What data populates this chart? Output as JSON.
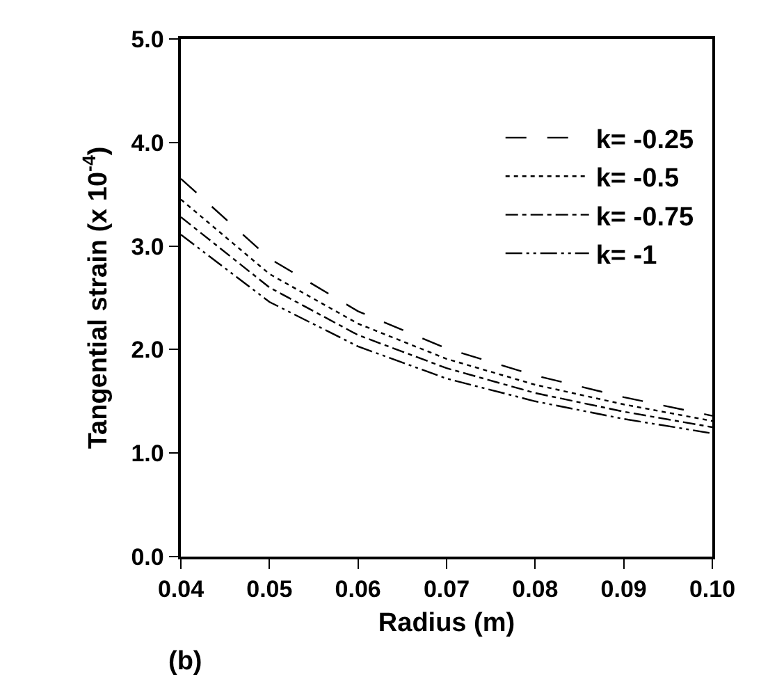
{
  "chart_data": {
    "type": "line",
    "xlabel": "Radius (m)",
    "ylabel": "Tangential strain (x 10$^{-4}$)",
    "annotations": [
      "(b)"
    ],
    "x": [
      0.04,
      0.05,
      0.06,
      0.07,
      0.08,
      0.09,
      0.1
    ],
    "series": [
      {
        "name": "k= -0.25",
        "color": "#000000",
        "line_style": "dashed",
        "values": [
          3.65,
          2.88,
          2.37,
          2.01,
          1.75,
          1.54,
          1.36
        ]
      },
      {
        "name": "k= -0.5",
        "color": "#000000",
        "line_style": "dotted",
        "values": [
          3.45,
          2.73,
          2.25,
          1.91,
          1.66,
          1.47,
          1.31
        ]
      },
      {
        "name": "k= -0.75",
        "color": "#000000",
        "line_style": "dashdot",
        "values": [
          3.28,
          2.6,
          2.14,
          1.82,
          1.58,
          1.4,
          1.25
        ]
      },
      {
        "name": "k= -1",
        "color": "#000000",
        "line_style": "dashdotdot",
        "values": [
          3.11,
          2.46,
          2.03,
          1.72,
          1.5,
          1.33,
          1.19
        ]
      }
    ],
    "xlim": [
      0.04,
      0.1
    ],
    "xticks": [
      0.04,
      0.05,
      0.06,
      0.07,
      0.08,
      0.09,
      {
        "value": 0.1,
        "label": "0.10"
      }
    ],
    "ylim": [
      0,
      5
    ],
    "yticks": [
      {
        "value": 0,
        "label": "0.0"
      },
      {
        "value": 1,
        "label": "1.0"
      },
      {
        "value": 2,
        "label": "2.0"
      },
      {
        "value": 3,
        "label": "3.0"
      },
      {
        "value": 4,
        "label": "4.0"
      },
      {
        "value": 5,
        "label": "5.0"
      }
    ],
    "grid": false,
    "legend": "top right",
    "marker": "none"
  }
}
